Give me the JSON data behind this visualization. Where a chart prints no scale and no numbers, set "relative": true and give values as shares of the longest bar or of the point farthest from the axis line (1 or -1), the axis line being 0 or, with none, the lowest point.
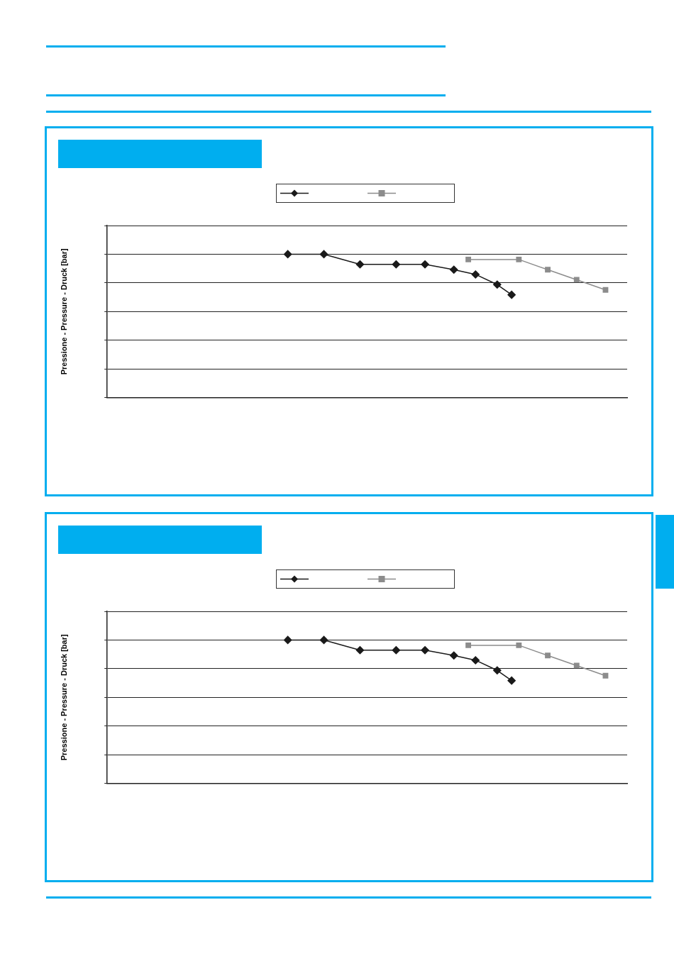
{
  "chart_data": [
    {
      "type": "line",
      "ylabel": "Pressione - Pressure - Druck [bar]",
      "relative": true,
      "grid": "y",
      "categories": [
        null,
        null,
        null,
        null,
        null,
        null,
        null,
        null,
        null,
        null,
        null,
        null,
        null,
        null,
        null,
        null,
        null,
        null,
        null,
        null,
        null,
        null,
        null,
        null,
        null,
        null,
        null,
        null,
        null,
        null,
        null,
        null,
        null,
        null,
        null,
        null,
        null,
        null,
        null,
        null,
        null,
        null,
        null,
        null,
        null,
        null,
        null,
        null,
        null,
        null,
        null,
        null,
        null,
        null,
        null,
        null,
        null,
        null,
        null,
        null,
        null,
        null,
        null,
        null,
        null,
        null,
        null,
        null,
        null,
        null,
        null,
        null,
        null
      ],
      "series": [
        {
          "color": "#1a1a1a",
          "marker": "diamond",
          "values": [
            null,
            null,
            null,
            null,
            null,
            null,
            null,
            null,
            null,
            null,
            null,
            null,
            null,
            null,
            null,
            null,
            null,
            null,
            null,
            null,
            null,
            null,
            null,
            null,
            null,
            1,
            null,
            null,
            null,
            null,
            1,
            null,
            null,
            null,
            null,
            0.929,
            null,
            null,
            null,
            null,
            0.929,
            null,
            null,
            null,
            0.929,
            null,
            null,
            null,
            0.892,
            null,
            null,
            0.859,
            null,
            null,
            0.788,
            null,
            0.717,
            null,
            null,
            null,
            null,
            null,
            null,
            null,
            null,
            null,
            null,
            null,
            null,
            null,
            null,
            null,
            null
          ]
        },
        {
          "color": "#8c8c8c",
          "marker": "square",
          "values": [
            null,
            null,
            null,
            null,
            null,
            null,
            null,
            null,
            null,
            null,
            null,
            null,
            null,
            null,
            null,
            null,
            null,
            null,
            null,
            null,
            null,
            null,
            null,
            null,
            null,
            null,
            null,
            null,
            null,
            null,
            null,
            null,
            null,
            null,
            null,
            null,
            null,
            null,
            null,
            null,
            null,
            null,
            null,
            null,
            null,
            null,
            null,
            null,
            null,
            null,
            0.963,
            null,
            null,
            null,
            null,
            null,
            null,
            0.963,
            null,
            null,
            null,
            0.892,
            null,
            null,
            null,
            0.822,
            null,
            null,
            null,
            0.751,
            null,
            null,
            null
          ]
        }
      ]
    },
    {
      "type": "line",
      "ylabel": "Pressione - Pressure - Druck [bar]",
      "relative": true,
      "grid": "y",
      "categories": [
        null,
        null,
        null,
        null,
        null,
        null,
        null,
        null,
        null,
        null,
        null,
        null,
        null,
        null,
        null,
        null,
        null,
        null,
        null,
        null,
        null,
        null,
        null,
        null,
        null,
        null,
        null,
        null,
        null,
        null,
        null,
        null,
        null,
        null,
        null,
        null,
        null,
        null,
        null,
        null,
        null,
        null,
        null,
        null,
        null,
        null,
        null,
        null,
        null,
        null,
        null,
        null,
        null,
        null,
        null,
        null,
        null,
        null,
        null,
        null,
        null,
        null,
        null,
        null,
        null,
        null,
        null,
        null,
        null,
        null,
        null,
        null,
        null
      ],
      "series": [
        {
          "color": "#1a1a1a",
          "marker": "diamond",
          "values": [
            null,
            null,
            null,
            null,
            null,
            null,
            null,
            null,
            null,
            null,
            null,
            null,
            null,
            null,
            null,
            null,
            null,
            null,
            null,
            null,
            null,
            null,
            null,
            null,
            null,
            1,
            null,
            null,
            null,
            null,
            1,
            null,
            null,
            null,
            null,
            0.929,
            null,
            null,
            null,
            null,
            0.929,
            null,
            null,
            null,
            0.929,
            null,
            null,
            null,
            0.892,
            null,
            null,
            0.859,
            null,
            null,
            0.788,
            null,
            0.717,
            null,
            null,
            null,
            null,
            null,
            null,
            null,
            null,
            null,
            null,
            null,
            null,
            null,
            null,
            null,
            null
          ]
        },
        {
          "color": "#8c8c8c",
          "marker": "square",
          "values": [
            null,
            null,
            null,
            null,
            null,
            null,
            null,
            null,
            null,
            null,
            null,
            null,
            null,
            null,
            null,
            null,
            null,
            null,
            null,
            null,
            null,
            null,
            null,
            null,
            null,
            null,
            null,
            null,
            null,
            null,
            null,
            null,
            null,
            null,
            null,
            null,
            null,
            null,
            null,
            null,
            null,
            null,
            null,
            null,
            null,
            null,
            null,
            null,
            null,
            null,
            0.963,
            null,
            null,
            null,
            null,
            null,
            null,
            0.963,
            null,
            null,
            null,
            0.892,
            null,
            null,
            null,
            0.822,
            null,
            null,
            null,
            0.751,
            null,
            null,
            null
          ]
        }
      ]
    }
  ]
}
